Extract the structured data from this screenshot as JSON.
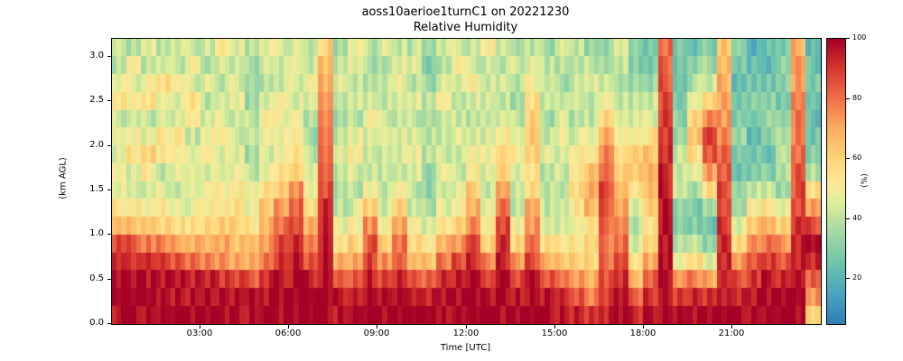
{
  "axes": {
    "x_ticks": [
      "03:00",
      "06:00",
      "09:00",
      "12:00",
      "15:00",
      "18:00",
      "21:00"
    ],
    "x_tick_hours": [
      3,
      6,
      9,
      12,
      15,
      18,
      21
    ],
    "x_range_hours": [
      0,
      24
    ],
    "y_ticks": [
      "0.0",
      "0.5",
      "1.0",
      "1.5",
      "2.0",
      "2.5",
      "3.0"
    ],
    "y_tick_values": [
      0,
      0.5,
      1.0,
      1.5,
      2.0,
      2.5,
      3.0
    ],
    "y_range_km": [
      0,
      3.2
    ],
    "colorbar_ticks": [
      100,
      80,
      60,
      40,
      20
    ],
    "colorbar_range": [
      5,
      100
    ]
  },
  "chart_data": {
    "type": "heatmap",
    "title": "aoss10aerioe1turnC1 on 20221230",
    "subtitle": "Relative Humidity",
    "xlabel": "Time [UTC]",
    "ylabel": "(km AGL)",
    "colorbar_label": "(%)",
    "value_units": "%",
    "value_range": [
      5,
      100
    ],
    "time_hours_utc": [
      0,
      0.5,
      1,
      1.5,
      2,
      2.5,
      3,
      3.5,
      4,
      4.5,
      5,
      5.5,
      6,
      6.5,
      7,
      7.5,
      8,
      8.5,
      9,
      9.5,
      10,
      10.5,
      11,
      11.5,
      12,
      12.5,
      13,
      13.5,
      14,
      14.5,
      15,
      15.5,
      16,
      16.5,
      17,
      17.5,
      18,
      18.5,
      19,
      19.5,
      20,
      20.5,
      21,
      21.5,
      22,
      22.5,
      23,
      23.5
    ],
    "heights_km": [
      0.1,
      0.3,
      0.5,
      0.7,
      0.9,
      1.1,
      1.3,
      1.5,
      1.7,
      1.9,
      2.1,
      2.3,
      2.5,
      2.7,
      2.9,
      3.1
    ],
    "colormap": [
      {
        "value": 5,
        "color": "#2f7eb8"
      },
      {
        "value": 15,
        "color": "#4aa5c0"
      },
      {
        "value": 25,
        "color": "#6ec4ab"
      },
      {
        "value": 35,
        "color": "#a0d8a4"
      },
      {
        "value": 45,
        "color": "#dcee9a"
      },
      {
        "value": 52,
        "color": "#fee999"
      },
      {
        "value": 60,
        "color": "#fdd577"
      },
      {
        "value": 70,
        "color": "#fdae61"
      },
      {
        "value": 80,
        "color": "#f0704a"
      },
      {
        "value": 90,
        "color": "#d8382e"
      },
      {
        "value": 100,
        "color": "#a50026"
      }
    ],
    "values_percent": [
      [
        98,
        100,
        100,
        96,
        88,
        70,
        55,
        48,
        52,
        45,
        50,
        42,
        55,
        48,
        38,
        45
      ],
      [
        100,
        100,
        98,
        94,
        84,
        66,
        52,
        42,
        46,
        55,
        48,
        40,
        52,
        45,
        50,
        35
      ],
      [
        100,
        100,
        98,
        92,
        80,
        62,
        50,
        44,
        52,
        60,
        45,
        40,
        55,
        48,
        42,
        45
      ],
      [
        100,
        100,
        96,
        90,
        76,
        60,
        52,
        46,
        42,
        52,
        55,
        42,
        48,
        55,
        45,
        40
      ],
      [
        100,
        98,
        95,
        86,
        72,
        58,
        50,
        42,
        46,
        48,
        52,
        46,
        44,
        50,
        42,
        45
      ],
      [
        100,
        98,
        94,
        82,
        68,
        56,
        48,
        44,
        50,
        46,
        42,
        52,
        55,
        45,
        48,
        42
      ],
      [
        100,
        97,
        92,
        78,
        66,
        58,
        52,
        48,
        44,
        52,
        48,
        44,
        40,
        46,
        38,
        42
      ],
      [
        100,
        96,
        90,
        76,
        70,
        62,
        55,
        50,
        48,
        44,
        50,
        48,
        44,
        40,
        45,
        50
      ],
      [
        98,
        95,
        86,
        72,
        66,
        60,
        56,
        52,
        50,
        48,
        44,
        42,
        48,
        44,
        40,
        44
      ],
      [
        98,
        94,
        84,
        70,
        62,
        55,
        48,
        44,
        40,
        36,
        38,
        40,
        35,
        32,
        36,
        40
      ],
      [
        100,
        96,
        90,
        80,
        74,
        68,
        62,
        55,
        50,
        46,
        48,
        50,
        44,
        40,
        45,
        48
      ],
      [
        100,
        98,
        96,
        92,
        86,
        80,
        74,
        64,
        55,
        50,
        46,
        48,
        50,
        44,
        42,
        45
      ],
      [
        100,
        100,
        98,
        96,
        92,
        88,
        82,
        74,
        64,
        55,
        50,
        46,
        42,
        46,
        50,
        44
      ],
      [
        100,
        98,
        94,
        86,
        78,
        68,
        58,
        50,
        45,
        40,
        36,
        40,
        44,
        50,
        44,
        40
      ],
      [
        100,
        100,
        99,
        97,
        95,
        93,
        91,
        88,
        85,
        82,
        79,
        76,
        72,
        68,
        64,
        60
      ],
      [
        98,
        95,
        86,
        70,
        56,
        46,
        40,
        38,
        42,
        46,
        40,
        36,
        40,
        44,
        40,
        36
      ],
      [
        100,
        96,
        86,
        72,
        60,
        50,
        45,
        40,
        44,
        50,
        45,
        40,
        44,
        40,
        45,
        50
      ],
      [
        100,
        98,
        95,
        90,
        84,
        74,
        60,
        50,
        44,
        40,
        44,
        50,
        44,
        40,
        36,
        40
      ],
      [
        100,
        97,
        90,
        76,
        62,
        50,
        45,
        42,
        40,
        44,
        50,
        44,
        40,
        44,
        40,
        44
      ],
      [
        100,
        98,
        93,
        86,
        78,
        70,
        60,
        50,
        45,
        42,
        44,
        40,
        44,
        50,
        44,
        40
      ],
      [
        100,
        96,
        86,
        70,
        58,
        48,
        42,
        40,
        44,
        50,
        44,
        40,
        44,
        40,
        44,
        40
      ],
      [
        98,
        94,
        82,
        66,
        52,
        42,
        36,
        32,
        35,
        40,
        38,
        34,
        38,
        34,
        30,
        34
      ],
      [
        100,
        97,
        90,
        80,
        68,
        56,
        48,
        44,
        50,
        44,
        40,
        44,
        50,
        44,
        40,
        44
      ],
      [
        100,
        98,
        94,
        88,
        76,
        62,
        50,
        45,
        42,
        44,
        48,
        44,
        40,
        44,
        50,
        44
      ],
      [
        100,
        100,
        97,
        93,
        86,
        78,
        70,
        62,
        55,
        50,
        44,
        40,
        44,
        50,
        44,
        40
      ],
      [
        100,
        98,
        90,
        78,
        62,
        50,
        45,
        40,
        44,
        48,
        44,
        40,
        44,
        40,
        44,
        50
      ],
      [
        100,
        100,
        98,
        95,
        91,
        86,
        80,
        72,
        64,
        56,
        50,
        44,
        40,
        44,
        40,
        44
      ],
      [
        100,
        97,
        88,
        75,
        60,
        50,
        42,
        40,
        44,
        50,
        44,
        40,
        35,
        40,
        44,
        40
      ],
      [
        100,
        98,
        94,
        88,
        82,
        76,
        68,
        60,
        56,
        60,
        64,
        60,
        55,
        50,
        44,
        40
      ],
      [
        100,
        96,
        86,
        70,
        58,
        48,
        42,
        38,
        40,
        44,
        40,
        35,
        40,
        44,
        40,
        35
      ],
      [
        98,
        92,
        80,
        65,
        52,
        45,
        40,
        38,
        42,
        46,
        48,
        44,
        40,
        35,
        40,
        44
      ],
      [
        94,
        86,
        74,
        62,
        55,
        50,
        55,
        60,
        55,
        50,
        45,
        40,
        44,
        40,
        35,
        40
      ],
      [
        88,
        78,
        68,
        60,
        56,
        60,
        66,
        70,
        64,
        55,
        48,
        42,
        40,
        44,
        40,
        35
      ],
      [
        95,
        90,
        86,
        82,
        80,
        83,
        86,
        88,
        84,
        78,
        70,
        60,
        50,
        44,
        40,
        35
      ],
      [
        98,
        95,
        91,
        86,
        80,
        75,
        70,
        65,
        60,
        55,
        50,
        44,
        40,
        35,
        40,
        44
      ],
      [
        94,
        84,
        68,
        54,
        45,
        40,
        46,
        56,
        64,
        60,
        50,
        44,
        40,
        34,
        30,
        34
      ],
      [
        98,
        92,
        82,
        70,
        60,
        56,
        60,
        66,
        70,
        64,
        55,
        45,
        40,
        34,
        30,
        26
      ],
      [
        100,
        100,
        100,
        99,
        98,
        97,
        96,
        95,
        94,
        92,
        90,
        88,
        86,
        84,
        82,
        80
      ],
      [
        98,
        90,
        70,
        50,
        36,
        30,
        34,
        40,
        44,
        40,
        35,
        30,
        26,
        22,
        26,
        30
      ],
      [
        100,
        94,
        78,
        58,
        40,
        30,
        28,
        36,
        46,
        56,
        64,
        58,
        48,
        38,
        30,
        26
      ],
      [
        100,
        92,
        70,
        46,
        30,
        26,
        36,
        56,
        74,
        84,
        88,
        78,
        60,
        44,
        34,
        30
      ],
      [
        100,
        98,
        96,
        94,
        92,
        90,
        88,
        86,
        83,
        80,
        78,
        75,
        72,
        70,
        68,
        65
      ],
      [
        100,
        95,
        85,
        74,
        60,
        45,
        35,
        30,
        26,
        30,
        34,
        30,
        26,
        22,
        26,
        30
      ],
      [
        100,
        98,
        92,
        86,
        78,
        64,
        50,
        40,
        30,
        25,
        22,
        26,
        30,
        26,
        22,
        18
      ],
      [
        100,
        100,
        96,
        90,
        82,
        70,
        55,
        40,
        30,
        26,
        30,
        34,
        30,
        26,
        22,
        26
      ],
      [
        100,
        98,
        94,
        85,
        74,
        60,
        46,
        36,
        40,
        44,
        40,
        30,
        26,
        30,
        34,
        30
      ],
      [
        100,
        100,
        98,
        95,
        92,
        90,
        88,
        86,
        84,
        82,
        80,
        78,
        76,
        74,
        72,
        70
      ],
      [
        60,
        72,
        84,
        94,
        96,
        86,
        70,
        55,
        40,
        30,
        26,
        22,
        26,
        30,
        26,
        22
      ]
    ]
  }
}
